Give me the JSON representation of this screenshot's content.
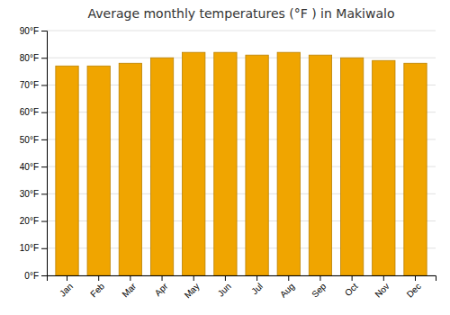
{
  "chart_data": {
    "type": "bar",
    "title": "Average monthly temperatures (°F ) in Makiwalo",
    "categories": [
      "Jan",
      "Feb",
      "Mar",
      "Apr",
      "May",
      "Jun",
      "Jul",
      "Aug",
      "Sep",
      "Oct",
      "Nov",
      "Dec"
    ],
    "values": [
      77,
      77,
      78,
      80,
      82,
      82,
      81,
      82,
      81,
      80,
      79,
      78
    ],
    "color": "#F0A500",
    "ylim": [
      0,
      90
    ],
    "yticks": [
      {
        "value": 0,
        "label": "0°F"
      },
      {
        "value": 10,
        "label": "10°F"
      },
      {
        "value": 20,
        "label": "20°F"
      },
      {
        "value": 30,
        "label": "30°F"
      },
      {
        "value": 40,
        "label": "40°F"
      },
      {
        "value": 50,
        "label": "50°F"
      },
      {
        "value": 60,
        "label": "60°F"
      },
      {
        "value": 70,
        "label": "70°F"
      },
      {
        "value": 80,
        "label": "80°F"
      },
      {
        "value": 90,
        "label": "90°F"
      }
    ],
    "grid": true
  }
}
